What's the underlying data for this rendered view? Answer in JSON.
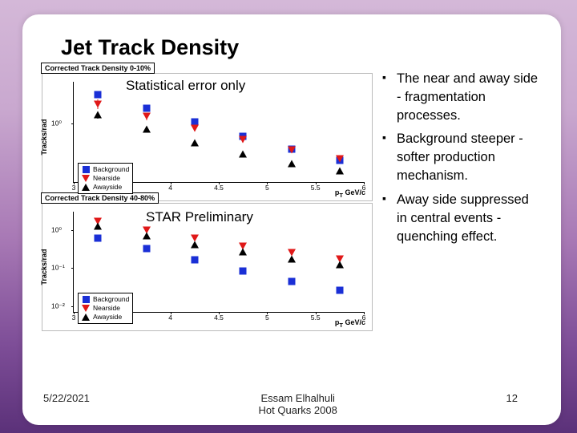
{
  "title": "Jet Track Density",
  "overlay_stat": "Statistical error only",
  "overlay_star": "STAR Preliminary",
  "bullets": [
    "The near and away side - fragmentation processes.",
    "Background steeper - softer production mechanism.",
    "Away side suppressed in central events - quenching effect."
  ],
  "footer": {
    "date": "5/22/2021",
    "author": "Essam Elhalhuli",
    "conf": "Hot Quarks 2008",
    "pagenum": "12"
  },
  "colors": {
    "bg_top": "#d4b8d8",
    "bg_bottom": "#5b3179",
    "card": "#ffffff",
    "background_series": "#1a2fd6",
    "nearside_series": "#e01818",
    "awayside_series": "#000000"
  },
  "legend": {
    "rows": [
      {
        "marker": "sq",
        "color": "#1a2fd6",
        "label": "Background"
      },
      {
        "marker": "triD",
        "color": "#e01818",
        "label": "Nearside"
      },
      {
        "marker": "triU",
        "color": "#000000",
        "label": "Awayside"
      }
    ]
  },
  "axis": {
    "ylabel": "Tracks/rad",
    "xlabel_html": "p<sub>T</sub> GeV/c",
    "xlim": [
      3.0,
      6.0
    ],
    "xticks": [
      3,
      3.5,
      4,
      4.5,
      5,
      5.5,
      6
    ],
    "ylog": true,
    "ylim_top": [
      0.08,
      6
    ],
    "ylim_bot": [
      0.007,
      3
    ],
    "yticks_top": [
      1
    ],
    "yticks_top_labels": [
      "10⁰"
    ],
    "yticks_bot": [
      0.01,
      0.1,
      1
    ],
    "yticks_bot_labels": [
      "10⁻²",
      "10⁻¹",
      "10⁰"
    ]
  },
  "charts": [
    {
      "label": "Corrected Track Density 0-10%",
      "ylim_key": "ylim_top",
      "yticks_key": "yticks_top",
      "ytick_labels_key": "yticks_top_labels",
      "series": [
        {
          "name": "Background",
          "marker": "sq",
          "color": "#1a2fd6",
          "points": [
            [
              3.25,
              3.5
            ],
            [
              3.75,
              1.9
            ],
            [
              4.25,
              1.05
            ],
            [
              4.75,
              0.58
            ],
            [
              5.25,
              0.33
            ],
            [
              5.75,
              0.2
            ]
          ],
          "err": [
            0.15,
            0.13,
            0.1,
            0.1,
            0.08,
            0.08
          ]
        },
        {
          "name": "Nearside",
          "marker": "triD",
          "color": "#e01818",
          "points": [
            [
              3.25,
              2.3
            ],
            [
              3.75,
              1.35
            ],
            [
              4.25,
              0.8
            ],
            [
              4.75,
              0.5
            ],
            [
              5.25,
              0.32
            ],
            [
              5.75,
              0.22
            ]
          ],
          "err": [
            0.2,
            0.15,
            0.12,
            0.12,
            0.1,
            0.1
          ]
        },
        {
          "name": "Awayside",
          "marker": "triU",
          "color": "#000000",
          "points": [
            [
              3.25,
              1.45
            ],
            [
              3.75,
              0.78
            ],
            [
              4.25,
              0.44
            ],
            [
              4.75,
              0.27
            ],
            [
              5.25,
              0.18
            ],
            [
              5.75,
              0.13
            ]
          ],
          "err": [
            0.15,
            0.12,
            0.1,
            0.1,
            0.1,
            0.1
          ]
        }
      ]
    },
    {
      "label": "Corrected Track Density 40-80%",
      "ylim_key": "ylim_bot",
      "yticks_key": "yticks_bot",
      "ytick_labels_key": "yticks_bot_labels",
      "series": [
        {
          "name": "Background",
          "marker": "sq",
          "color": "#1a2fd6",
          "points": [
            [
              3.25,
              0.62
            ],
            [
              3.75,
              0.32
            ],
            [
              4.25,
              0.16
            ],
            [
              4.75,
              0.085
            ],
            [
              5.25,
              0.045
            ],
            [
              5.75,
              0.026
            ]
          ],
          "err": [
            0.08,
            0.06,
            0.05,
            0.05,
            0.05,
            0.05
          ]
        },
        {
          "name": "Nearside",
          "marker": "triD",
          "color": "#e01818",
          "points": [
            [
              3.25,
              1.7
            ],
            [
              3.75,
              0.98
            ],
            [
              4.25,
              0.6
            ],
            [
              4.75,
              0.38
            ],
            [
              5.25,
              0.25
            ],
            [
              5.75,
              0.17
            ]
          ],
          "err": [
            0.15,
            0.12,
            0.1,
            0.1,
            0.1,
            0.1
          ]
        },
        {
          "name": "Awayside",
          "marker": "triU",
          "color": "#000000",
          "points": [
            [
              3.25,
              1.25
            ],
            [
              3.75,
              0.7
            ],
            [
              4.25,
              0.42
            ],
            [
              4.75,
              0.26
            ],
            [
              5.25,
              0.17
            ],
            [
              5.75,
              0.12
            ]
          ],
          "err": [
            0.15,
            0.12,
            0.1,
            0.1,
            0.1,
            0.1
          ]
        }
      ]
    }
  ]
}
